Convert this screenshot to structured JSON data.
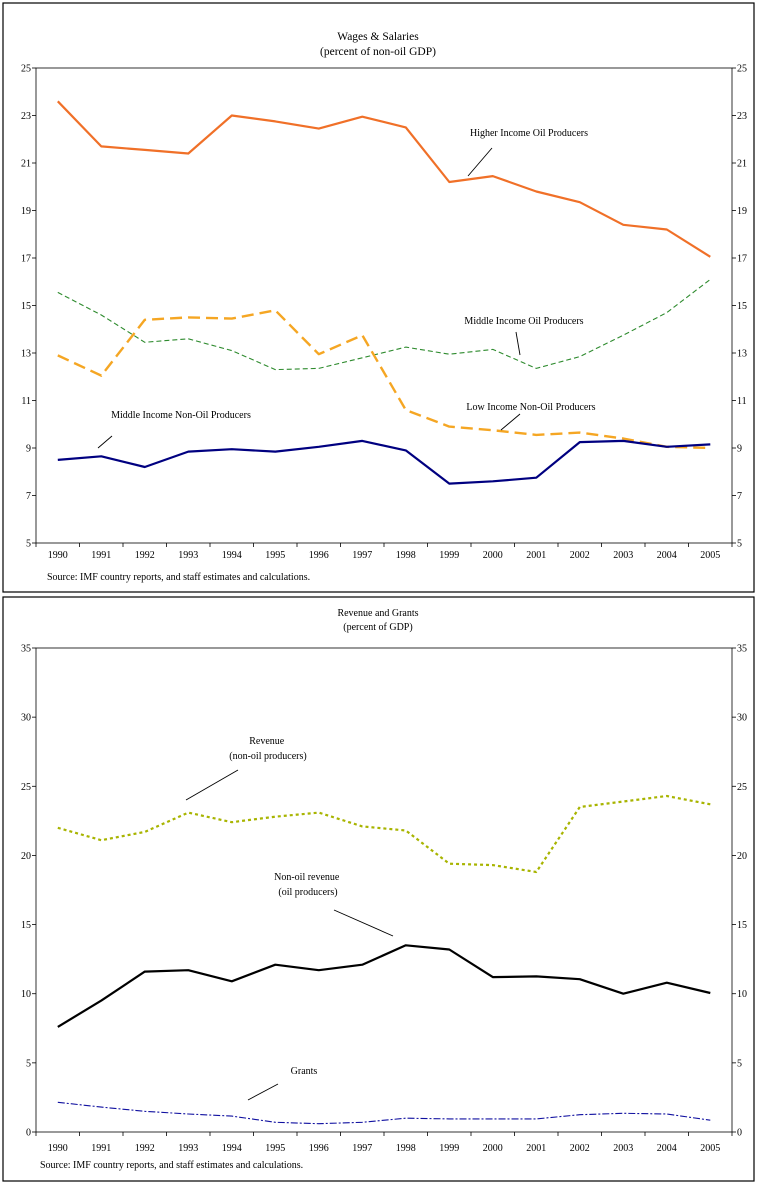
{
  "chart_data": [
    {
      "type": "line",
      "title": "Wages & Salaries",
      "subtitle": "(percent of non-oil GDP)",
      "source": "Source: IMF country reports, and staff estimates and calculations.",
      "categories": [
        "1990",
        "1991",
        "1992",
        "1993",
        "1994",
        "1995",
        "1996",
        "1997",
        "1998",
        "1999",
        "2000",
        "2001",
        "2002",
        "2003",
        "2004",
        "2005"
      ],
      "ylim": [
        5,
        25
      ],
      "yticks": [
        5,
        7,
        9,
        11,
        13,
        15,
        17,
        19,
        21,
        23,
        25
      ],
      "secondary_axis": true,
      "grid": false,
      "series": [
        {
          "name": "Higher Income Oil Producers",
          "color": "#F07028",
          "style": "solid",
          "values": [
            23.6,
            21.7,
            21.55,
            21.4,
            23.0,
            22.75,
            22.45,
            22.95,
            22.5,
            20.2,
            20.45,
            19.8,
            19.35,
            18.4,
            18.2,
            17.05
          ]
        },
        {
          "name": "Middle Income Oil Producers",
          "color": "#2E8B2E",
          "style": "dashed",
          "values": [
            15.55,
            14.6,
            13.45,
            13.6,
            13.1,
            12.3,
            12.35,
            12.8,
            13.25,
            12.95,
            13.15,
            12.35,
            12.85,
            13.75,
            14.7,
            16.1
          ]
        },
        {
          "name": "Low Income Non-Oil Producers",
          "color": "#F5A623",
          "style": "longdash",
          "values": [
            12.9,
            12.05,
            14.4,
            14.5,
            14.45,
            14.8,
            12.95,
            13.75,
            10.6,
            9.9,
            9.75,
            9.55,
            9.65,
            9.4,
            9.05,
            9.0
          ]
        },
        {
          "name": "Middle Income Non-Oil Producers",
          "color": "#000080",
          "style": "solid",
          "values": [
            8.5,
            8.65,
            8.2,
            8.85,
            8.95,
            8.85,
            9.05,
            9.3,
            8.9,
            7.5,
            7.6,
            7.75,
            9.25,
            9.3,
            9.05,
            9.15
          ]
        }
      ]
    },
    {
      "type": "line",
      "title": "Revenue and Grants",
      "subtitle": "(percent of GDP)",
      "source": "Source: IMF country reports, and staff estimates and calculations.",
      "categories": [
        "1990",
        "1991",
        "1992",
        "1993",
        "1994",
        "1995",
        "1996",
        "1997",
        "1998",
        "1999",
        "2000",
        "2001",
        "2002",
        "2003",
        "2004",
        "2005"
      ],
      "ylim": [
        0,
        35
      ],
      "yticks": [
        0,
        5,
        10,
        15,
        20,
        25,
        30,
        35
      ],
      "secondary_axis": true,
      "grid": false,
      "series": [
        {
          "name": "Revenue\n(non-oil producers)",
          "color": "#A8B400",
          "style": "dotted",
          "values": [
            22.0,
            21.1,
            21.7,
            23.1,
            22.4,
            22.8,
            23.1,
            22.1,
            21.8,
            19.4,
            19.3,
            18.8,
            23.5,
            23.9,
            24.3,
            23.7
          ]
        },
        {
          "name": "Non-oil revenue\n(oil producers)",
          "color": "#000000",
          "style": "solid",
          "values": [
            7.6,
            9.5,
            11.6,
            11.7,
            10.9,
            12.1,
            11.7,
            12.1,
            13.5,
            13.2,
            11.2,
            11.25,
            11.05,
            10.0,
            10.8,
            10.05
          ]
        },
        {
          "name": "Grants",
          "color": "#1010A0",
          "style": "dashdot",
          "values": [
            2.15,
            1.8,
            1.5,
            1.3,
            1.15,
            0.7,
            0.6,
            0.7,
            1.0,
            0.95,
            0.95,
            0.95,
            1.25,
            1.35,
            1.3,
            0.85
          ]
        }
      ]
    }
  ]
}
